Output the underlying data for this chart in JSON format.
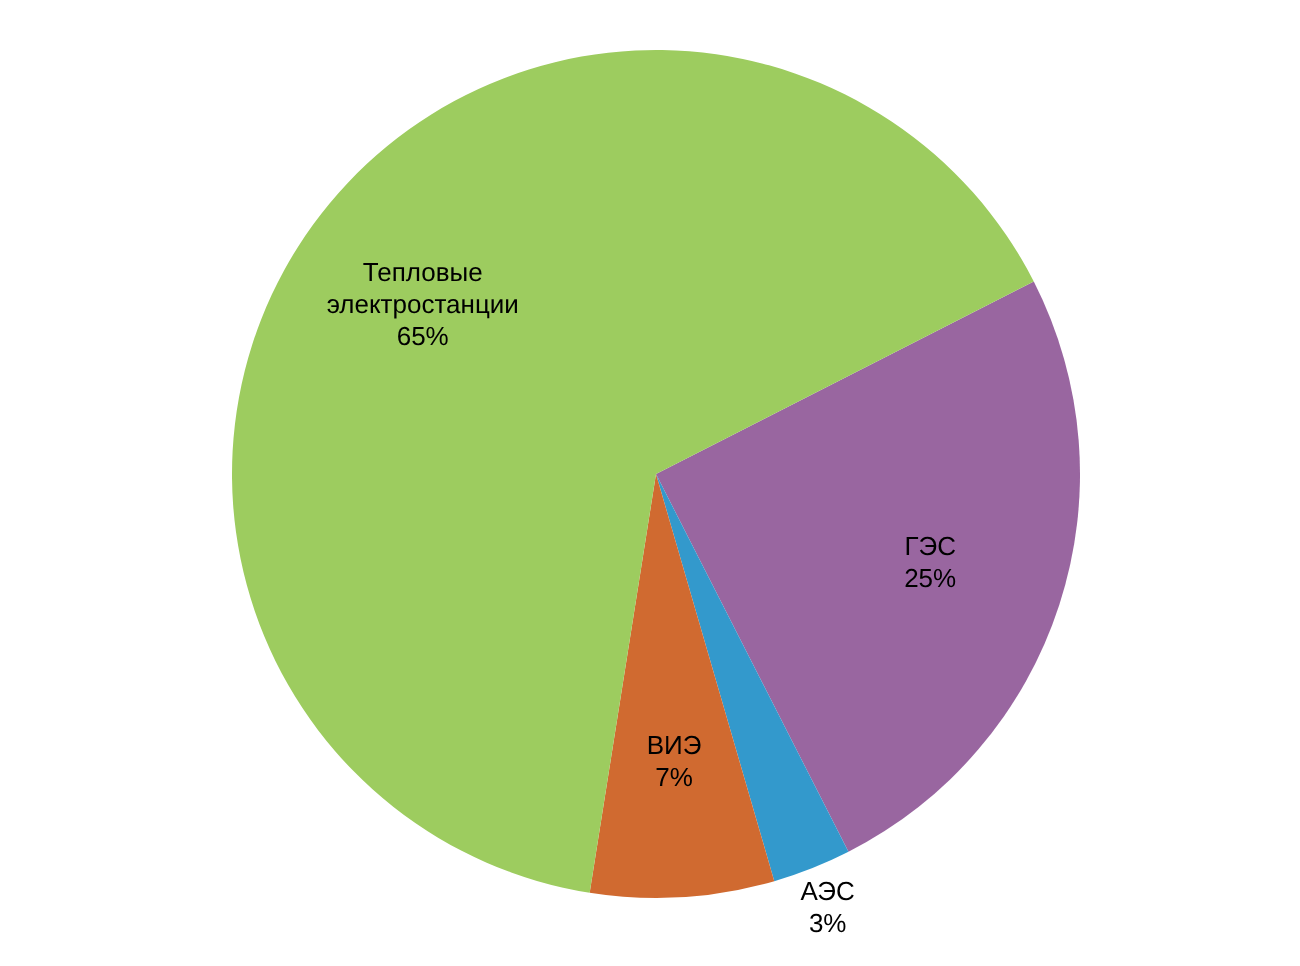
{
  "chart_data": {
    "type": "pie",
    "categories": [
      "ГЭС",
      "АЭС",
      "ВИЭ",
      "Тепловые электростанции"
    ],
    "values": [
      25,
      3,
      7,
      65
    ],
    "colors": [
      "#9966a0",
      "#3399cc",
      "#d06a30",
      "#9dcc5f"
    ],
    "value_labels": [
      "25%",
      "3%",
      "7%",
      "65%"
    ]
  }
}
